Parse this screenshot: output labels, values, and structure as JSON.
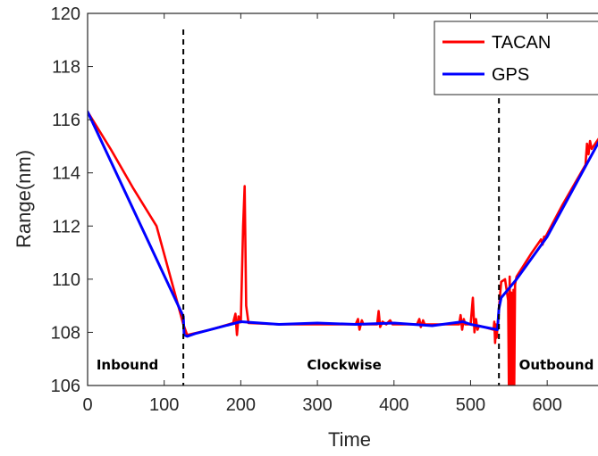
{
  "chart_data": {
    "type": "line",
    "xlabel": "Time",
    "ylabel": "Range(nm)",
    "xlim": [
      0,
      685
    ],
    "ylim": [
      106,
      120
    ],
    "xticks": [
      0,
      100,
      200,
      300,
      400,
      500,
      600
    ],
    "yticks": [
      106,
      108,
      110,
      112,
      114,
      116,
      118,
      120
    ],
    "grid": false,
    "legend": {
      "placement": "top-right",
      "entries": [
        "TACAN",
        "GPS"
      ]
    },
    "colors": {
      "TACAN": "#ff0000",
      "GPS": "#0000ff"
    },
    "series": [
      {
        "name": "TACAN",
        "color": "#ff0000",
        "x": [
          0,
          30,
          60,
          90,
          125,
          130,
          160,
          190,
          193,
          195,
          197,
          200,
          203,
          205,
          207,
          210,
          250,
          300,
          330,
          350,
          353,
          355,
          358,
          360,
          378,
          380,
          382,
          385,
          390,
          393,
          395,
          398,
          400,
          430,
          433,
          435,
          438,
          440,
          470,
          485,
          487,
          489,
          491,
          493,
          500,
          503,
          505,
          507,
          509,
          511,
          530,
          531,
          532,
          533,
          534,
          535,
          536,
          537,
          540,
          545,
          549,
          550,
          551,
          552,
          553,
          554,
          555,
          556,
          557,
          558,
          560,
          580,
          592,
          594,
          596,
          598,
          620,
          650,
          652,
          654,
          656,
          658,
          670,
          685
        ],
        "y": [
          116.3,
          114.9,
          113.4,
          112.0,
          108.3,
          107.9,
          108.1,
          108.35,
          108.7,
          107.9,
          108.6,
          108.38,
          112.0,
          113.5,
          109.0,
          108.35,
          108.3,
          108.3,
          108.3,
          108.3,
          108.5,
          108.1,
          108.45,
          108.3,
          108.3,
          108.8,
          108.2,
          108.4,
          108.3,
          108.4,
          108.45,
          108.3,
          108.3,
          108.3,
          108.5,
          108.2,
          108.45,
          108.3,
          108.3,
          108.3,
          108.65,
          108.1,
          108.5,
          108.3,
          108.3,
          109.3,
          108.0,
          108.5,
          108.1,
          108.25,
          108.1,
          108.4,
          107.6,
          108.3,
          107.8,
          108.2,
          108.5,
          108.9,
          109.9,
          110.0,
          109.2,
          106.0,
          110.1,
          106.0,
          109.5,
          106.2,
          106.0,
          109.6,
          106.0,
          109.8,
          110.1,
          111.0,
          111.5,
          111.3,
          111.6,
          111.6,
          112.8,
          114.3,
          115.1,
          114.7,
          115.2,
          114.9,
          115.4,
          116.1
        ]
      },
      {
        "name": "GPS",
        "color": "#0000ff",
        "x": [
          0,
          125,
          126,
          130,
          140,
          200,
          250,
          300,
          350,
          400,
          450,
          490,
          500,
          535,
          537,
          540,
          560,
          600,
          685
        ],
        "y": [
          116.3,
          108.6,
          107.9,
          107.85,
          107.95,
          108.4,
          108.3,
          108.35,
          108.3,
          108.35,
          108.25,
          108.4,
          108.3,
          108.1,
          108.9,
          109.3,
          110.0,
          111.6,
          116.1
        ]
      }
    ],
    "vertical_lines": [
      {
        "x": 125,
        "style": "dashed",
        "color": "#000000"
      },
      {
        "x": 537,
        "style": "dashed",
        "color": "#000000"
      }
    ],
    "annotations": [
      {
        "text": "Inbound",
        "x": 52,
        "y": 106.6
      },
      {
        "text": "Clockwise",
        "x": 335,
        "y": 106.6
      },
      {
        "text": "Outbound",
        "x": 612,
        "y": 106.6
      }
    ]
  }
}
